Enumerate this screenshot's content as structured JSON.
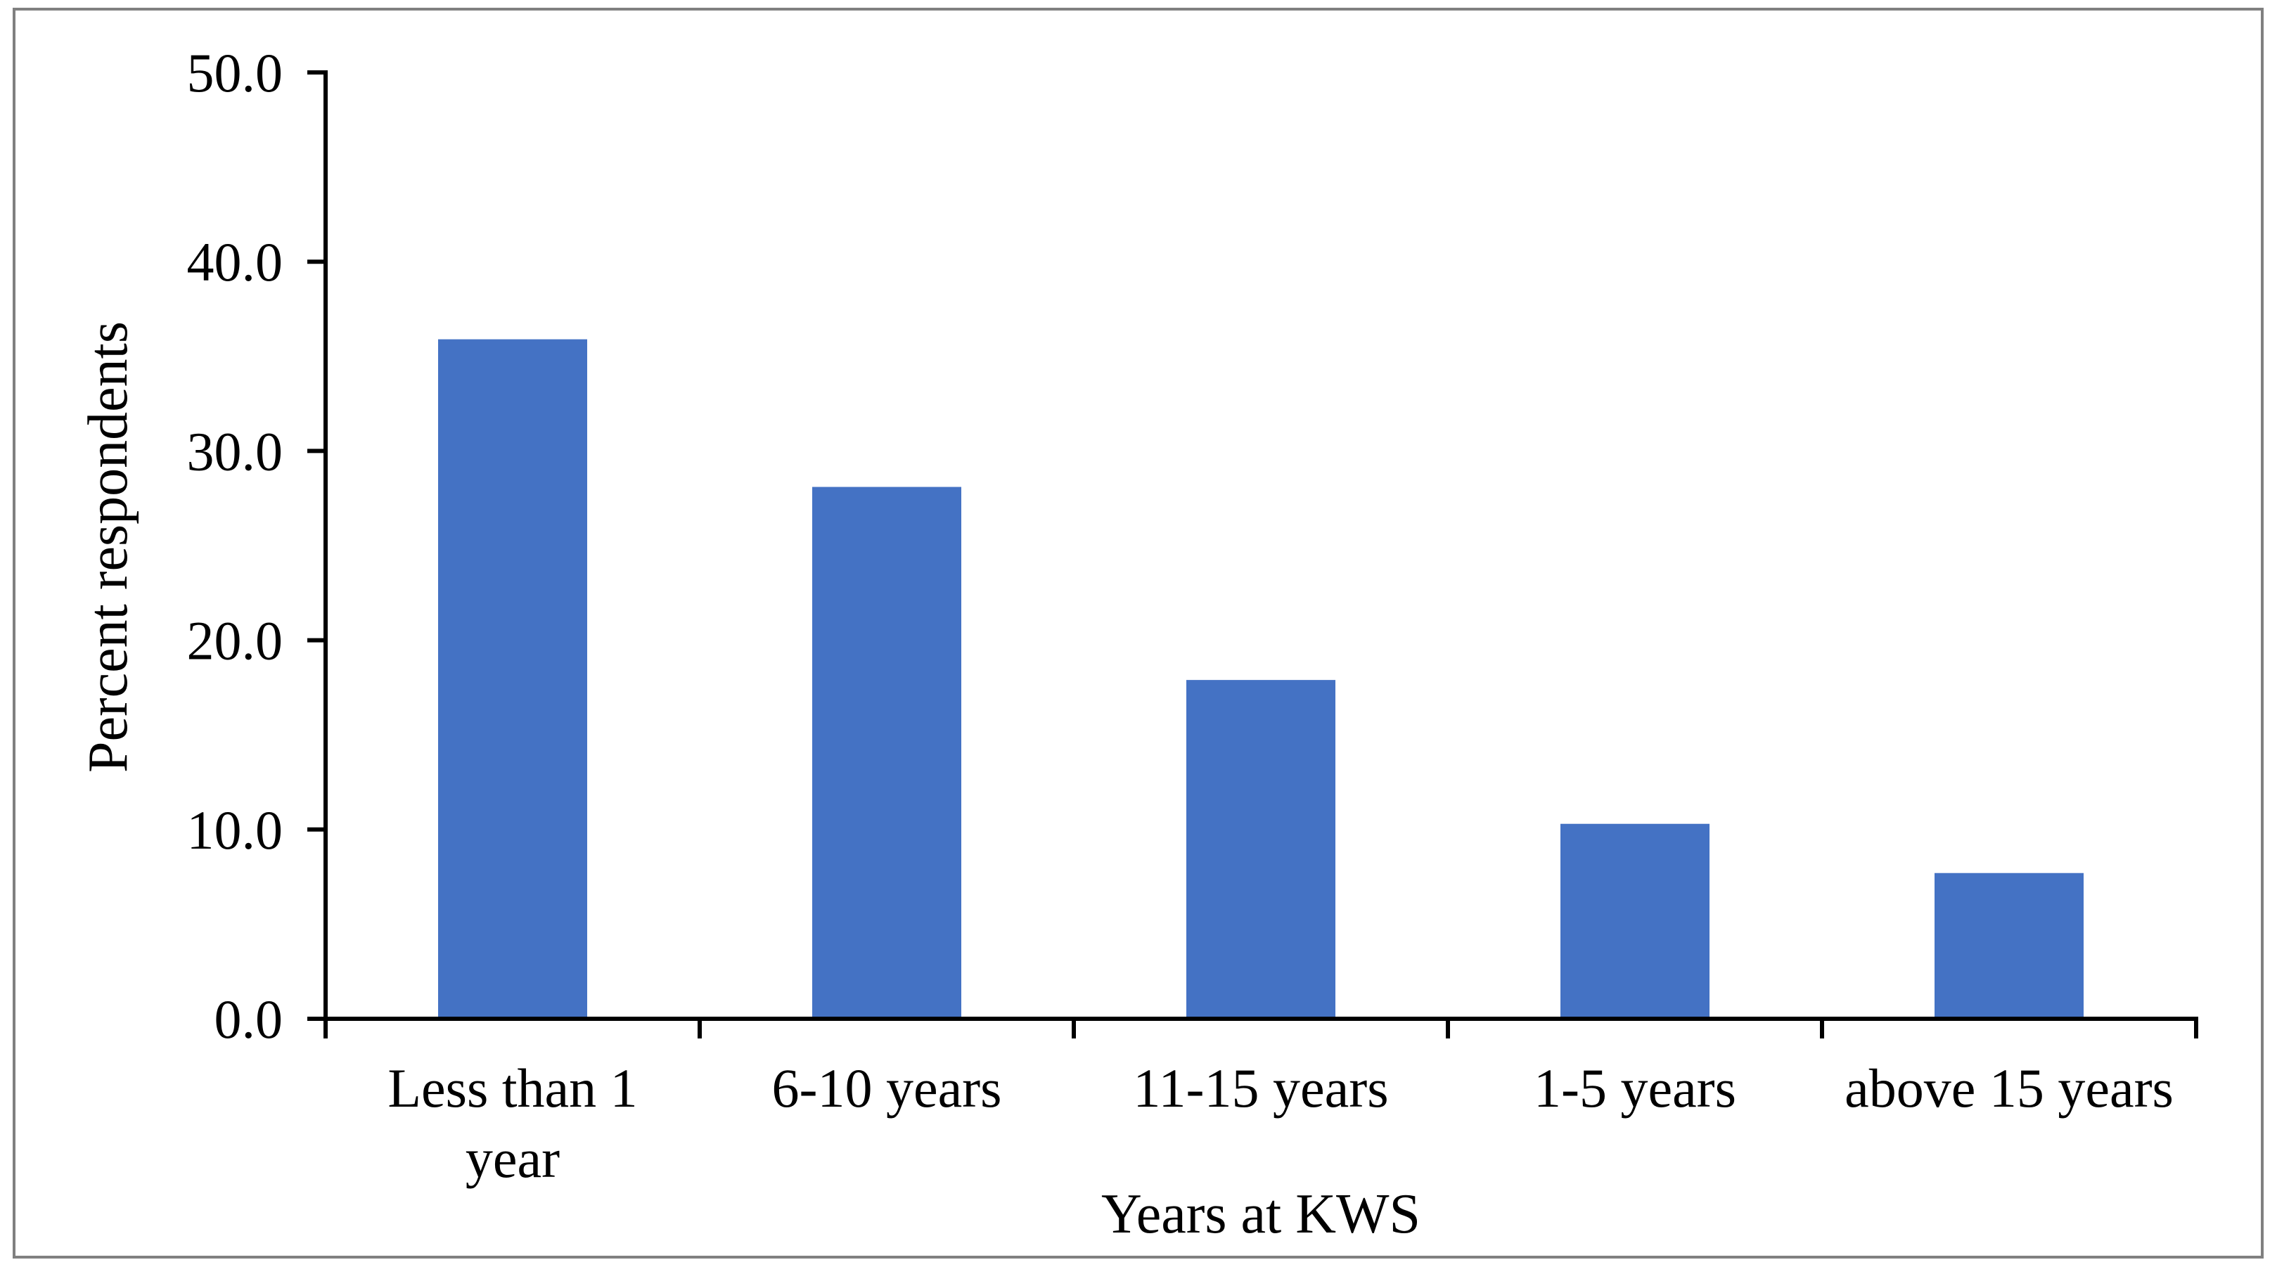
{
  "chart_data": {
    "type": "bar",
    "title": "",
    "categories": [
      "Less than 1 year",
      "6-10 years",
      "11-15 years",
      "1-5 years",
      "above 15 years"
    ],
    "values": [
      35.9,
      28.1,
      17.9,
      10.3,
      7.7
    ],
    "xlabel": "Years at KWS",
    "ylabel": "Percent respondents",
    "ylim": [
      0,
      50
    ],
    "ytick_step": 10,
    "ytick_labels": [
      "0.0",
      "10.0",
      "20.0",
      "30.0",
      "40.0",
      "50.0"
    ],
    "grid": false,
    "legend": "none",
    "colors": {
      "bar": "#4472C4",
      "axis": "#000000",
      "text": "#000000",
      "frame": "#808080",
      "background": "#FFFFFF"
    }
  }
}
